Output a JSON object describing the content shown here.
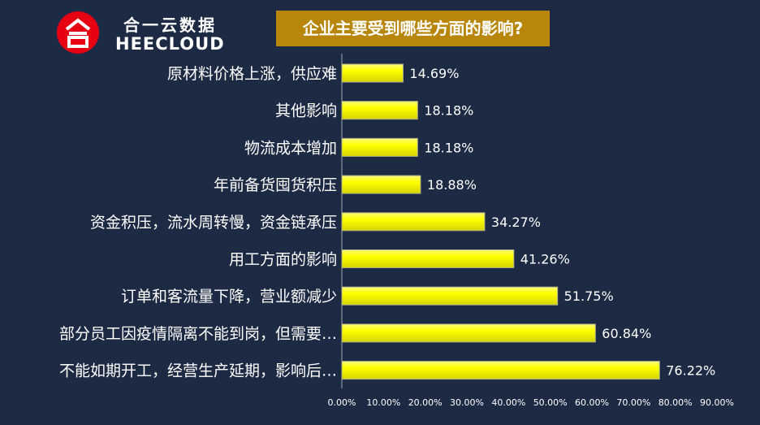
{
  "logo": {
    "cn": "合一云数据",
    "en": "HEECLOUD"
  },
  "colors": {
    "background": "#1d2a44",
    "bar": "#f2f200",
    "title_bg": "#b8860b",
    "logo_red": "#e60012"
  },
  "chart_data": {
    "type": "bar",
    "orientation": "horizontal",
    "title": "企业主要受到哪些方面的影响?",
    "categories": [
      "原材料价格上涨，供应难",
      "其他影响",
      "物流成本增加",
      "年前备货囤货积压",
      "资金积压，流水周转慢，资金链承压",
      "用工方面的影响",
      "订单和客流量下降，营业额减少",
      "部分员工因疫情隔离不能到岗，但需要…",
      "不能如期开工，经营生产延期，影响后…"
    ],
    "values": [
      14.69,
      18.18,
      18.18,
      18.88,
      34.27,
      41.26,
      51.75,
      60.84,
      76.22
    ],
    "value_labels": [
      "14.69%",
      "18.18%",
      "18.18%",
      "18.88%",
      "34.27%",
      "41.26%",
      "51.75%",
      "60.84%",
      "76.22%"
    ],
    "xlim": [
      0,
      90
    ],
    "xticks": [
      "0.00%",
      "10.00%",
      "20.00%",
      "30.00%",
      "40.00%",
      "50.00%",
      "60.00%",
      "70.00%",
      "80.00%",
      "90.00%"
    ],
    "xlabel": "",
    "ylabel": "",
    "grid": false,
    "legend": "none"
  }
}
